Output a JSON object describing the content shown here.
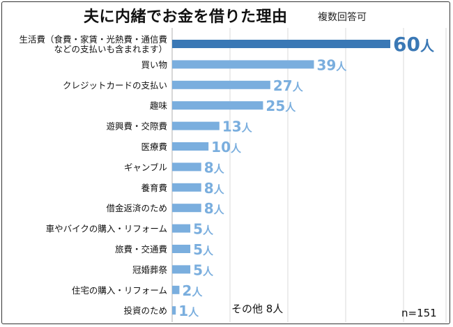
{
  "header": {
    "title": "夫に内緒でお金を借りた理由",
    "subtitle": "複数回答可"
  },
  "footnotes": {
    "other": "その他 8人",
    "n": "n=151"
  },
  "colors": {
    "highlight": "#3a78b5",
    "bar": "#7aaede",
    "label_highlight": "#3a78b5",
    "label": "#7aaede",
    "grid": "#d9d9d9"
  },
  "chart_data": {
    "type": "bar",
    "orientation": "horizontal",
    "title": "夫に内緒でお金を借りた理由",
    "subtitle": "複数回答可",
    "categories": [
      "生活費（食費・家賃・光熱費・通信費など の支払いも含まれます）",
      "買い物",
      "クレジットカードの支払い",
      "趣味",
      "遊興費・交際費",
      "医療費",
      "ギャンブル",
      "養育費",
      "借金返済のため",
      "車やバイクの購入・リフォーム",
      "旅費・交通費",
      "冠婚葬祭",
      "住宅の購入・リフォーム",
      "投資のため"
    ],
    "category_lines": [
      [
        "生活費（食費・家賃・光熱費・通信費",
        "などの支払いも含まれます）"
      ],
      [
        "買い物"
      ],
      [
        "クレジットカードの支払い"
      ],
      [
        "趣味"
      ],
      [
        "遊興費・交際費"
      ],
      [
        "医療費"
      ],
      [
        "ギャンブル"
      ],
      [
        "養育費"
      ],
      [
        "借金返済のため"
      ],
      [
        "車やバイクの購入・リフォーム"
      ],
      [
        "旅費・交通費"
      ],
      [
        "冠婚葬祭"
      ],
      [
        "住宅の購入・リフォーム"
      ],
      [
        "投資のため"
      ]
    ],
    "values": [
      60,
      39,
      27,
      25,
      13,
      10,
      8,
      8,
      8,
      5,
      5,
      5,
      2,
      1
    ],
    "value_labels": [
      "60人",
      "39人",
      "27人",
      "25人",
      "13人",
      "10人",
      "8人",
      "8人",
      "8人",
      "5人",
      "5人",
      "5人",
      "2人",
      "1人"
    ],
    "xlim": [
      0,
      60
    ],
    "grid": true,
    "notes": [
      "その他 8人",
      "n=151"
    ]
  }
}
